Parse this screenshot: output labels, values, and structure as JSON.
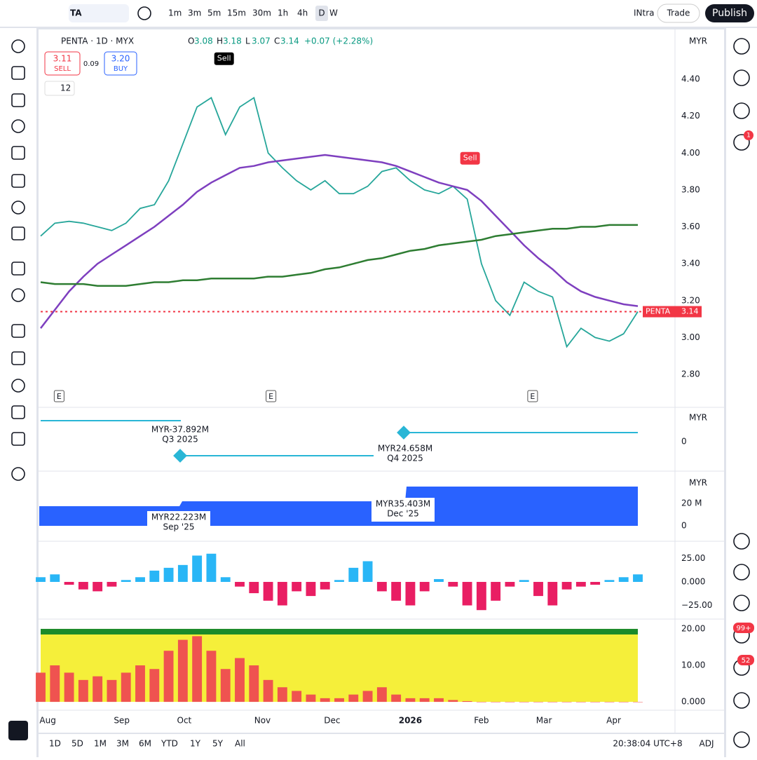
{
  "toolbar": {
    "symbol": "TA",
    "intervals": [
      "1m",
      "3m",
      "5m",
      "15m",
      "30m",
      "1h",
      "4h",
      "D",
      "W"
    ],
    "layout": "INtra",
    "trade": "Trade",
    "publish": "Publish"
  },
  "legend": {
    "title": "PENTA · 1D · MYX",
    "ohlc": [
      {
        "label": "O",
        "value": "3.08"
      },
      {
        "label": "H",
        "value": "3.18"
      },
      {
        "label": "L",
        "value": "3.07"
      },
      {
        "label": "C",
        "value": "3.14"
      }
    ],
    "change": "+0.07 (+2.28%)",
    "sell_price": "3.11",
    "sell": "SELL",
    "spread": "0.09",
    "buy_price": "3.20",
    "buy": "BUY",
    "length": "12"
  },
  "chart_data": [
    {
      "type": "line",
      "currency": "MYR",
      "ylim": [
        2.625,
        4.659
      ],
      "yticks": [
        {
          "value": 4.4,
          "label": "4.40"
        },
        {
          "value": 4.2,
          "label": "4.20"
        },
        {
          "value": 4.0,
          "label": "4.00"
        },
        {
          "value": 3.8,
          "label": "3.80"
        },
        {
          "value": 3.6,
          "label": "3.60"
        },
        {
          "value": 3.4,
          "label": "3.40"
        },
        {
          "value": 3.2,
          "label": "3.20"
        },
        {
          "value": 3.0,
          "label": "3.00"
        },
        {
          "value": 2.8,
          "label": "2.80"
        }
      ],
      "xlim": [
        0,
        42
      ],
      "xticks": [
        {
          "value": 0.5,
          "label": "Aug"
        },
        {
          "value": 5.7,
          "label": "Sep"
        },
        {
          "value": 10.1,
          "label": "Oct"
        },
        {
          "value": 15.6,
          "label": "Nov"
        },
        {
          "value": 20.5,
          "label": "Dec"
        },
        {
          "value": 26,
          "label": "2026"
        },
        {
          "value": 31,
          "label": "Feb"
        },
        {
          "value": 35.4,
          "label": "Mar"
        },
        {
          "value": 40.3,
          "label": "Apr"
        }
      ],
      "last": {
        "name": "PENTA",
        "value": 3.14,
        "label": "3.14",
        "color": "#f23645"
      },
      "series": [
        {
          "color": "#26a69a",
          "values": [
            3.55,
            3.62,
            3.63,
            3.62,
            3.6,
            3.58,
            3.62,
            3.7,
            3.72,
            3.85,
            4.05,
            4.25,
            4.3,
            4.1,
            4.25,
            4.3,
            4.0,
            3.92,
            3.85,
            3.8,
            3.85,
            3.78,
            3.78,
            3.82,
            3.9,
            3.92,
            3.85,
            3.8,
            3.78,
            3.82,
            3.75,
            3.4,
            3.2,
            3.12,
            3.3,
            3.25,
            3.22,
            2.95,
            3.05,
            3.0,
            2.98,
            3.02,
            3.14
          ]
        },
        {
          "color": "#7e3fbf",
          "values": [
            3.05,
            3.15,
            3.25,
            3.33,
            3.4,
            3.45,
            3.5,
            3.55,
            3.6,
            3.66,
            3.72,
            3.79,
            3.84,
            3.88,
            3.92,
            3.93,
            3.95,
            3.96,
            3.97,
            3.98,
            3.99,
            3.98,
            3.97,
            3.96,
            3.95,
            3.93,
            3.9,
            3.87,
            3.84,
            3.82,
            3.8,
            3.74,
            3.66,
            3.58,
            3.5,
            3.43,
            3.37,
            3.3,
            3.25,
            3.22,
            3.2,
            3.18,
            3.17
          ]
        },
        {
          "color": "#2e7d32",
          "values": [
            3.3,
            3.29,
            3.29,
            3.29,
            3.28,
            3.28,
            3.28,
            3.29,
            3.3,
            3.3,
            3.31,
            3.31,
            3.32,
            3.32,
            3.32,
            3.32,
            3.33,
            3.33,
            3.34,
            3.35,
            3.37,
            3.38,
            3.4,
            3.42,
            3.43,
            3.45,
            3.47,
            3.48,
            3.5,
            3.51,
            3.52,
            3.53,
            3.55,
            3.56,
            3.57,
            3.58,
            3.59,
            3.59,
            3.6,
            3.6,
            3.61,
            3.61,
            3.61
          ]
        }
      ],
      "signals": [
        {
          "label": "Sell",
          "x": 12.9,
          "y": 4.47
        },
        {
          "label": "Sell",
          "x": 30.2,
          "y": 3.93
        }
      ],
      "earnings_marks": [
        {
          "label": "E",
          "x": 1.3
        },
        {
          "label": "E",
          "x": 16.2
        },
        {
          "label": "E",
          "x": 34.6
        }
      ]
    },
    {
      "type": "bar",
      "ylim": [
        -37.3,
        41
      ],
      "yticks": [
        {
          "value": 25,
          "label": "25.00"
        },
        {
          "value": 0,
          "label": "0.000"
        },
        {
          "value": -25,
          "label": "−25.00"
        }
      ],
      "up_color": "#29b6f6",
      "down_color": "#e91e63",
      "values": [
        5,
        8,
        -3,
        -8,
        -10,
        -5,
        2,
        5,
        12,
        15,
        18,
        28,
        30,
        5,
        -5,
        -12,
        -20,
        -25,
        -10,
        -15,
        -8,
        2,
        15,
        22,
        -10,
        -20,
        -25,
        -10,
        3,
        -5,
        -25,
        -30,
        -20,
        -5,
        2,
        -15,
        -25,
        -8,
        -5,
        -3,
        2,
        5,
        8
      ]
    },
    {
      "type": "bar",
      "ylim": [
        -2.1,
        22.3
      ],
      "yticks": [
        {
          "value": 20,
          "label": "20.00"
        },
        {
          "value": 10,
          "label": "10.00"
        },
        {
          "value": 0,
          "label": "0.000"
        }
      ],
      "color": "#ef5350",
      "background": "#f5ef3a",
      "top_color": "#1b8a2a",
      "values": [
        8,
        10,
        8,
        6,
        7,
        6,
        8,
        10,
        9,
        14,
        17,
        18,
        14,
        9,
        12,
        10,
        6,
        4,
        3,
        2,
        1,
        1,
        2,
        3,
        4,
        2,
        1,
        1,
        1,
        0.5,
        0.2,
        0,
        0,
        0,
        0,
        0,
        0,
        0,
        0,
        0,
        0,
        0,
        0
      ]
    }
  ],
  "earnings": {
    "currency": "MYR",
    "zero": "0",
    "items": [
      {
        "value": "MYR-37.892M",
        "period": "Q3 2025"
      },
      {
        "value": "MYR24.658M",
        "period": "Q4 2025"
      }
    ]
  },
  "revenue": {
    "currency": "MYR",
    "ticks": [
      "20 M",
      "0"
    ],
    "items": [
      {
        "value": "MYR22.223M",
        "period": "Sep '25"
      },
      {
        "value": "MYR35.403M",
        "period": "Dec '25"
      }
    ]
  },
  "bottom": {
    "ranges": [
      "1D",
      "5D",
      "1M",
      "3M",
      "6M",
      "YTD",
      "1Y",
      "5Y",
      "All"
    ],
    "time": "20:38:04 UTC+8",
    "adj": "ADJ"
  },
  "badges": {
    "messages": "1",
    "feeds": "99+",
    "notifications": "52"
  }
}
